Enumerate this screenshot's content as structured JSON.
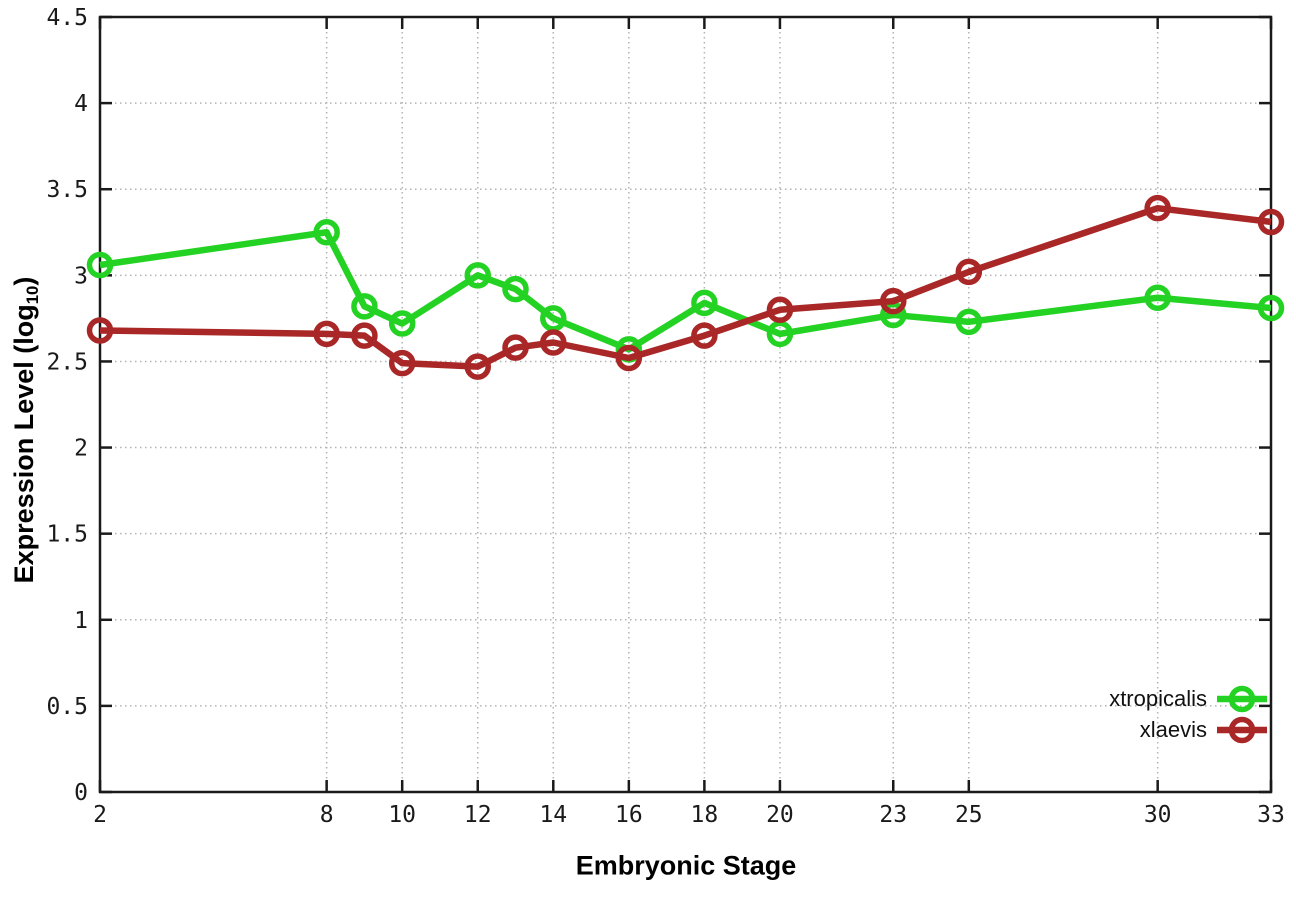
{
  "page": {
    "background": "#ffffff"
  },
  "chart_data": {
    "type": "line",
    "title": "",
    "xlabel": "Embryonic Stage",
    "ylabel": {
      "prefix": "Expression Level (log",
      "subscript": "10",
      "suffix": ")"
    },
    "xlim": [
      2,
      33
    ],
    "ylim": [
      0,
      4.5
    ],
    "grid": true,
    "legend_position": "bottom-right",
    "x_ticks": [
      "2",
      "8",
      "10",
      "12",
      "14",
      "16",
      "18",
      "20",
      "23",
      "25",
      "30",
      "33"
    ],
    "y_ticks": [
      "0",
      "0.5",
      "1",
      "1.5",
      "2",
      "2.5",
      "3",
      "3.5",
      "4",
      "4.5"
    ],
    "x": [
      2,
      8,
      9,
      10,
      12,
      13,
      14,
      16,
      18,
      20,
      23,
      25,
      30,
      33
    ],
    "series": [
      {
        "name": "xtropicalis",
        "color": "#24d224",
        "values": [
          3.06,
          3.25,
          2.82,
          2.72,
          3.0,
          2.92,
          2.75,
          2.57,
          2.84,
          2.66,
          2.77,
          2.73,
          2.87,
          2.81
        ]
      },
      {
        "name": "xlaevis",
        "color": "#a92727",
        "values": [
          2.68,
          2.66,
          2.65,
          2.49,
          2.47,
          2.58,
          2.61,
          2.52,
          2.65,
          2.8,
          2.85,
          3.02,
          3.39,
          3.31
        ]
      }
    ],
    "colors": {
      "grid": "#b3b3b3",
      "axis": "#1a1a1a",
      "tick_text": "#1a1a1a"
    }
  }
}
